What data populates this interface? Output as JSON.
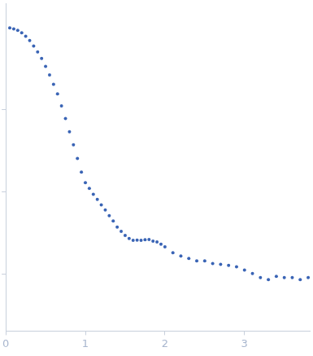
{
  "chart_data": {
    "type": "scatter",
    "x": [
      0.05,
      0.1,
      0.15,
      0.2,
      0.25,
      0.3,
      0.35,
      0.4,
      0.45,
      0.5,
      0.55,
      0.6,
      0.65,
      0.7,
      0.75,
      0.8,
      0.85,
      0.9,
      0.95,
      1.0,
      1.05,
      1.1,
      1.15,
      1.2,
      1.25,
      1.3,
      1.35,
      1.4,
      1.45,
      1.5,
      1.55,
      1.6,
      1.65,
      1.7,
      1.75,
      1.8,
      1.85,
      1.9,
      1.95,
      2.0,
      2.1,
      2.2,
      2.3,
      2.4,
      2.5,
      2.6,
      2.7,
      2.8,
      2.9,
      3.0,
      3.1,
      3.2,
      3.3,
      3.4,
      3.5,
      3.6,
      3.7,
      3.8
    ],
    "values": [
      1.0,
      0.97,
      0.933,
      0.87,
      0.793,
      0.7,
      0.601,
      0.51,
      0.425,
      0.34,
      0.267,
      0.205,
      0.157,
      0.112,
      0.0783,
      0.054,
      0.0374,
      0.0255,
      0.0174,
      0.0129,
      0.011,
      0.00933,
      0.0081,
      0.00692,
      0.006,
      0.00513,
      0.0044,
      0.00371,
      0.0033,
      0.00293,
      0.0027,
      0.00256,
      0.00258,
      0.00256,
      0.0026,
      0.00262,
      0.0025,
      0.00245,
      0.0023,
      0.00213,
      0.00181,
      0.00165,
      0.00154,
      0.00144,
      0.00144,
      0.00133,
      0.0013,
      0.00127,
      0.00122,
      0.00111,
      0.00101,
      0.0009,
      0.00085,
      0.00093,
      0.0009,
      0.0009,
      0.00085,
      0.0009
    ],
    "color": "#3a64b5",
    "marker": "circle",
    "xlim": [
      0,
      3.82
    ],
    "xticks": [
      0,
      1,
      2,
      3
    ],
    "ylim": [
      0.0002,
      2
    ],
    "yticks": [
      0.001,
      0.01,
      0.1
    ],
    "log": "y",
    "grid": false,
    "tick_labels": "x"
  }
}
